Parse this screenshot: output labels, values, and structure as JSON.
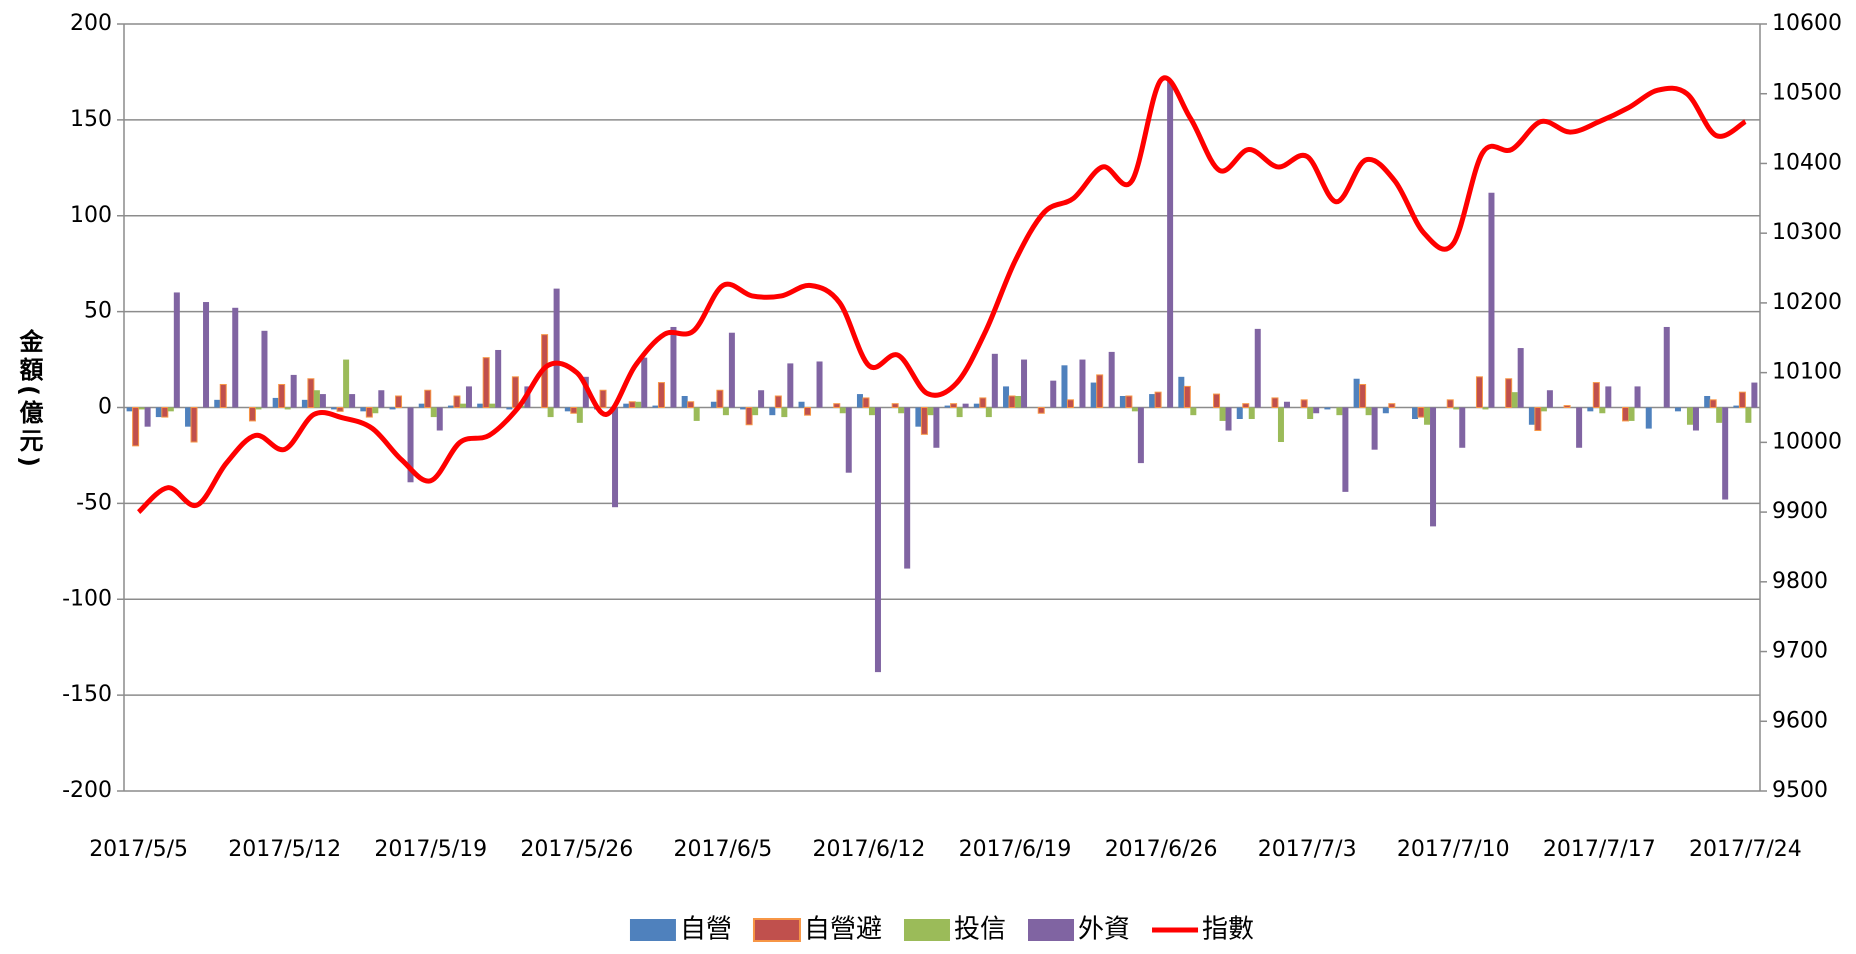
{
  "chart_data": {
    "type": "bar",
    "y_label": "金額(億元)",
    "categories": [
      "2017/5/5",
      null,
      null,
      null,
      null,
      "2017/5/12",
      null,
      null,
      null,
      null,
      "2017/5/19",
      null,
      null,
      null,
      null,
      "2017/5/26",
      null,
      null,
      null,
      null,
      "2017/6/5",
      null,
      null,
      null,
      null,
      "2017/6/12",
      null,
      null,
      null,
      null,
      "2017/6/19",
      null,
      null,
      null,
      null,
      "2017/6/26",
      null,
      null,
      null,
      null,
      "2017/7/3",
      null,
      null,
      null,
      null,
      "2017/7/10",
      null,
      null,
      null,
      null,
      "2017/7/17",
      null,
      null,
      null,
      null,
      "2017/7/24"
    ],
    "series": [
      {
        "name": "自營",
        "color": "#4f81bd",
        "values": [
          -2,
          -5,
          -10,
          4,
          0,
          5,
          4,
          -1,
          -2,
          -1,
          2,
          1,
          2,
          -1,
          0,
          -2,
          -1,
          2,
          1,
          6,
          3,
          -1,
          -4,
          3,
          0,
          7,
          0,
          -10,
          1,
          2,
          11,
          0,
          22,
          13,
          6,
          7,
          16,
          0,
          -6,
          0,
          0,
          -1,
          15,
          -3,
          -6,
          0,
          0,
          0,
          -9,
          0,
          -2,
          0,
          -11,
          -2,
          6,
          1
        ]
      },
      {
        "name": "自營避",
        "color": "#c0504d",
        "values": [
          -20,
          -5,
          -18,
          12,
          -7,
          12,
          15,
          -2,
          -5,
          6,
          9,
          6,
          26,
          16,
          38,
          -3,
          9,
          3,
          13,
          3,
          9,
          -9,
          6,
          -4,
          2,
          5,
          2,
          -14,
          2,
          5,
          6,
          -3,
          4,
          17,
          6,
          8,
          11,
          7,
          2,
          5,
          4,
          0,
          12,
          2,
          -5,
          4,
          16,
          15,
          -12,
          1,
          13,
          -7,
          0,
          0,
          4,
          8
        ]
      },
      {
        "name": "投信",
        "color": "#9bbb59",
        "values": [
          -1,
          -2,
          0,
          0,
          -1,
          -1,
          9,
          25,
          -3,
          0,
          -5,
          2,
          2,
          1,
          -5,
          -8,
          0,
          3,
          0,
          -7,
          -4,
          -4,
          -5,
          0,
          -3,
          -4,
          -3,
          -4,
          -5,
          -5,
          6,
          0,
          0,
          0,
          -2,
          0,
          -4,
          -7,
          -6,
          -18,
          -6,
          -4,
          -4,
          0,
          -9,
          -1,
          -1,
          8,
          -2,
          0,
          -3,
          -7,
          0,
          -9,
          -8,
          -8
        ]
      },
      {
        "name": "外資",
        "color": "#8064a2",
        "values": [
          -10,
          60,
          55,
          52,
          40,
          17,
          7,
          7,
          9,
          -39,
          -12,
          11,
          30,
          11,
          62,
          16,
          -52,
          26,
          42,
          0,
          39,
          9,
          23,
          24,
          -34,
          -138,
          -84,
          -21,
          2,
          28,
          25,
          14,
          25,
          29,
          -29,
          170,
          0,
          -12,
          41,
          3,
          -3,
          -44,
          -22,
          0,
          -62,
          -21,
          112,
          31,
          9,
          -21,
          11,
          11,
          42,
          -12,
          -48,
          13
        ]
      },
      {
        "name": "指數",
        "color": "#ff0000",
        "type": "line",
        "axis": "y2",
        "values": [
          9900,
          9935,
          9910,
          9970,
          10010,
          9990,
          10040,
          10035,
          10020,
          9975,
          9945,
          10000,
          10010,
          10050,
          10110,
          10100,
          10040,
          10110,
          10155,
          10160,
          10225,
          10210,
          10210,
          10225,
          10200,
          10110,
          10125,
          10070,
          10085,
          10160,
          10260,
          10330,
          10350,
          10395,
          10375,
          10520,
          10465,
          10390,
          10420,
          10395,
          10410,
          10345,
          10405,
          10375,
          10300,
          10285,
          10415,
          10420,
          10460,
          10445,
          10460,
          10480,
          10505,
          10500,
          10440,
          10460
        ]
      }
    ],
    "ylim": [
      -200,
      200
    ],
    "yticks": [
      -200,
      -150,
      -100,
      -50,
      0,
      50,
      100,
      150,
      200
    ],
    "y2lim": [
      9500,
      10600
    ],
    "y2ticks": [
      9500,
      9600,
      9700,
      9800,
      9900,
      10000,
      10100,
      10200,
      10300,
      10400,
      10500,
      10600
    ],
    "grid": true,
    "legend": "bottom"
  }
}
